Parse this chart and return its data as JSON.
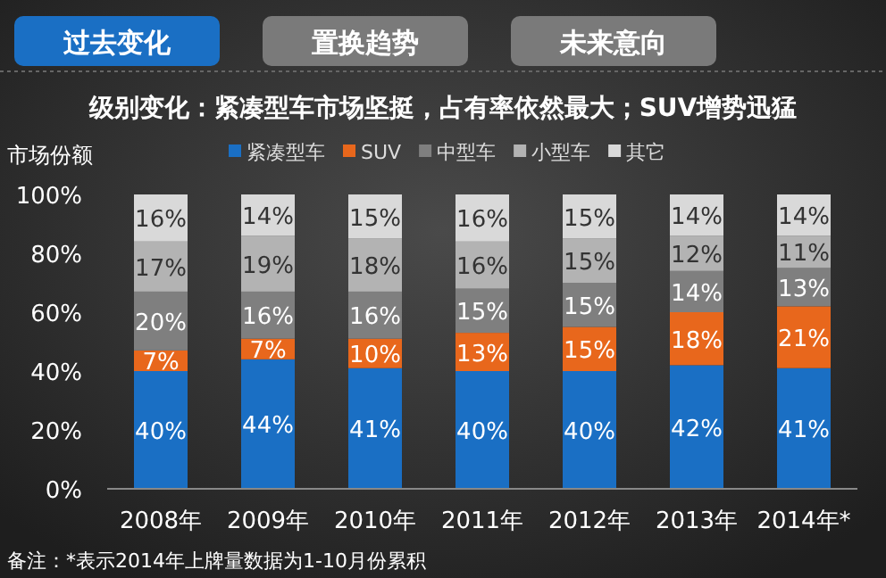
{
  "chart_data": {
    "type": "bar",
    "stacked": true,
    "title": "级别变化：紧凑型车市场坚挺，占有率依然最大；SUV增势迅猛",
    "ylabel": "市场份额",
    "annotations": [
      "过去变化",
      "置换趋势",
      "未来意向",
      "备注：*表示2014年上牌量数据为1-10月份累积"
    ],
    "categories": [
      "2008年",
      "2009年",
      "2010年",
      "2011年",
      "2012年",
      "2013年",
      "2014年*"
    ],
    "series": [
      {
        "name": "紧凑型车",
        "color": "#1a6fc4",
        "values": [
          40,
          44,
          41,
          40,
          40,
          42,
          41
        ],
        "value_labels": [
          "40%",
          "44%",
          "41%",
          "40%",
          "40%",
          "42%",
          "41%"
        ]
      },
      {
        "name": "SUV",
        "color": "#e8671c",
        "values": [
          7,
          7,
          10,
          13,
          15,
          18,
          21
        ],
        "value_labels": [
          "7%",
          "7%",
          "10%",
          "13%",
          "15%",
          "18%",
          "21%"
        ]
      },
      {
        "name": "中型车",
        "color": "#7f7f7f",
        "values": [
          20,
          16,
          16,
          15,
          15,
          14,
          13
        ],
        "value_labels": [
          "20%",
          "16%",
          "16%",
          "15%",
          "15%",
          "14%",
          "13%"
        ]
      },
      {
        "name": "小型车",
        "color": "#b3b3b3",
        "values": [
          17,
          19,
          18,
          16,
          15,
          12,
          11
        ],
        "value_labels": [
          "17%",
          "19%",
          "18%",
          "16%",
          "15%",
          "12%",
          "11%"
        ]
      },
      {
        "name": "其它",
        "color": "#d9d9d9",
        "values": [
          16,
          14,
          15,
          16,
          15,
          14,
          14
        ],
        "value_labels": [
          "16%",
          "14%",
          "15%",
          "16%",
          "15%",
          "14%",
          "14%"
        ]
      }
    ],
    "ylim": [
      0,
      100
    ],
    "yticks": [
      {
        "value": 0,
        "label": "0%"
      },
      {
        "value": 20,
        "label": "20%"
      },
      {
        "value": 40,
        "label": "40%"
      },
      {
        "value": 60,
        "label": "60%"
      },
      {
        "value": 80,
        "label": "80%"
      },
      {
        "value": 100,
        "label": "100%"
      }
    ],
    "legend": "top",
    "grid": false
  }
}
